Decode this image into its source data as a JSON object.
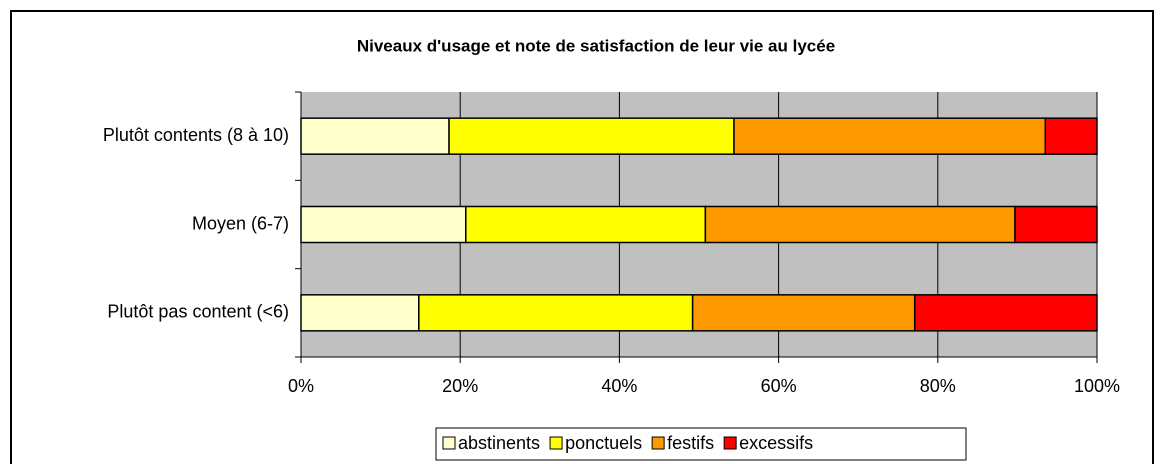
{
  "chart_data": {
    "type": "stacked_barh",
    "title": "Niveaux d'usage et note de satisfaction de leur vie au lycée",
    "categories": [
      "Plutôt contents (8 à 10)",
      "Moyen (6-7)",
      "Plutôt pas content (<6)"
    ],
    "series": [
      {
        "name": "abstinents",
        "color": "#ffffcc",
        "values": [
          18.6,
          20.7,
          14.8
        ]
      },
      {
        "name": "ponctuels",
        "color": "#ffff00",
        "values": [
          35.8,
          30.1,
          34.4
        ]
      },
      {
        "name": "festifs",
        "color": "#ff9900",
        "values": [
          39.1,
          38.9,
          27.9
        ]
      },
      {
        "name": "excessifs",
        "color": "#ff0000",
        "values": [
          6.5,
          10.3,
          22.9
        ]
      }
    ],
    "xlim": [
      0,
      100
    ],
    "xticks": [
      {
        "value": 0,
        "label": "0%"
      },
      {
        "value": 20,
        "label": "20%"
      },
      {
        "value": 40,
        "label": "40%"
      },
      {
        "value": 60,
        "label": "60%"
      },
      {
        "value": 80,
        "label": "80%"
      },
      {
        "value": 100,
        "label": "100%"
      }
    ],
    "grid": true,
    "plot_background": "#c0c0c0",
    "legend": "bottom"
  }
}
